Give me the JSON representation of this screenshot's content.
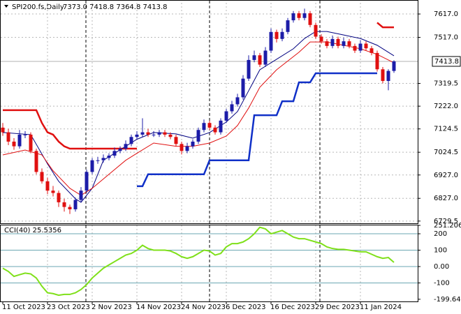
{
  "chart_data": {
    "type": "candlestick",
    "title": "SPI200.fs,Daily",
    "ohlc_text": "7373.0 7418.8 7364.8 7413.8",
    "xticks": [
      {
        "value": 0,
        "label": "11 Oct 2023"
      },
      {
        "value": 8,
        "label": "23 Oct 2023"
      },
      {
        "value": 16,
        "label": "2 Nov 2023"
      },
      {
        "value": 24,
        "label": "14 Nov 2023"
      },
      {
        "value": 32,
        "label": "24 Nov 2023"
      },
      {
        "value": 40,
        "label": "6 Dec 2023"
      },
      {
        "value": 48,
        "label": "16 Dec 2023"
      },
      {
        "value": 56,
        "label": "29 Dec 2023"
      },
      {
        "value": 64,
        "label": "11 Jan 2024"
      }
    ],
    "ylim": [
      6720,
      7665
    ],
    "yticks": [
      {
        "value": 7617,
        "label": "7617.0"
      },
      {
        "value": 7517,
        "label": "7517.0"
      },
      7319.5,
      {
        "value": 7222,
        "label": "7222.0"
      },
      7124.5,
      7024.5,
      {
        "value": 6927,
        "label": "6927.0"
      },
      {
        "value": 6827,
        "label": "6827.0"
      },
      6729.5
    ],
    "last_price": 7413.8,
    "grid": true,
    "up_color": "#1c1ca8",
    "down_color": "#e01010",
    "open": [
      7130,
      7110,
      7070,
      7050,
      7100,
      7100,
      7030,
      6940,
      6900,
      6860,
      6850,
      6810,
      6790,
      6780,
      6820,
      6860,
      6940,
      6990,
      6990,
      7000,
      7010,
      7030,
      7040,
      7060,
      7090,
      7100,
      7110,
      7100,
      7100,
      7110,
      7100,
      7090,
      7060,
      7030,
      7050,
      7070,
      7120,
      7150,
      7130,
      7110,
      7160,
      7200,
      7230,
      7260,
      7340,
      7420,
      7440,
      7400,
      7460,
      7540,
      7510,
      7540,
      7590,
      7620,
      7600,
      7620,
      7570,
      7520,
      7500,
      7480,
      7510,
      7480,
      7500,
      7480,
      7460,
      7490,
      7470,
      7450,
      7380,
      7330,
      7373.0
    ],
    "high": [
      7150,
      7125,
      7085,
      7120,
      7115,
      7110,
      7040,
      6955,
      6915,
      6880,
      6860,
      6825,
      6800,
      6830,
      6875,
      6950,
      7000,
      7005,
      7015,
      7020,
      7045,
      7050,
      7075,
      7100,
      7115,
      7170,
      7125,
      7115,
      7120,
      7120,
      7110,
      7100,
      7070,
      7065,
      7080,
      7130,
      7165,
      7160,
      7140,
      7170,
      7210,
      7245,
      7275,
      7355,
      7440,
      7460,
      7450,
      7475,
      7555,
      7550,
      7555,
      7600,
      7630,
      7630,
      7640,
      7630,
      7580,
      7530,
      7510,
      7525,
      7520,
      7515,
      7510,
      7490,
      7505,
      7500,
      7480,
      7460,
      7390,
      7380,
      7418.8
    ],
    "low": [
      7095,
      7055,
      7035,
      7040,
      7085,
      7020,
      6930,
      6890,
      6845,
      6835,
      6790,
      6770,
      6760,
      6770,
      6810,
      6850,
      6930,
      6975,
      6980,
      6990,
      7000,
      7020,
      7030,
      7050,
      7080,
      7090,
      7090,
      7090,
      7090,
      7090,
      7080,
      7050,
      7015,
      7020,
      7040,
      7060,
      7110,
      7120,
      7100,
      7100,
      7150,
      7190,
      7220,
      7250,
      7330,
      7410,
      7390,
      7390,
      7450,
      7495,
      7500,
      7530,
      7580,
      7590,
      7590,
      7560,
      7510,
      7490,
      7470,
      7470,
      7470,
      7470,
      7470,
      7450,
      7450,
      7460,
      7440,
      7370,
      7320,
      7290,
      7364.8
    ],
    "close": [
      7110,
      7070,
      7050,
      7100,
      7100,
      7030,
      6940,
      6900,
      6860,
      6850,
      6810,
      6790,
      6780,
      6820,
      6860,
      6940,
      6990,
      6990,
      7000,
      7010,
      7030,
      7040,
      7060,
      7090,
      7100,
      7110,
      7100,
      7100,
      7110,
      7100,
      7090,
      7060,
      7030,
      7050,
      7070,
      7120,
      7150,
      7130,
      7110,
      7160,
      7200,
      7230,
      7260,
      7340,
      7420,
      7440,
      7400,
      7460,
      7540,
      7510,
      7540,
      7590,
      7620,
      7600,
      7620,
      7570,
      7520,
      7500,
      7480,
      7510,
      7480,
      7500,
      7480,
      7460,
      7490,
      7470,
      7450,
      7380,
      7330,
      7373,
      7413.8
    ],
    "overlays": [
      {
        "x": [
          0,
          6,
          7,
          8,
          9,
          10,
          11,
          12,
          24,
          25,
          67,
          68,
          70
        ],
        "values": [
          7205,
          7205,
          7150,
          7110,
          7100,
          7070,
          7050,
          7040,
          7040,
          null,
          7580,
          7560,
          7560
        ],
        "color": "#e01010",
        "width": 2.5
      },
      {
        "x": [
          24,
          25,
          26,
          36,
          37,
          44,
          45,
          49,
          50,
          52,
          53,
          55,
          56,
          67
        ],
        "values": [
          6879,
          6879,
          6930,
          6930,
          6990,
          6990,
          7183,
          7183,
          7243,
          7243,
          7324,
          7324,
          7363,
          7363
        ],
        "color": "#1030c8",
        "width": 2.5
      },
      {
        "x": [
          0,
          5,
          8,
          10,
          13,
          14,
          16,
          18,
          21,
          24,
          27,
          31,
          34,
          37,
          40,
          42,
          44,
          46,
          49,
          52,
          54,
          56,
          58,
          61,
          64,
          67,
          70
        ],
        "values": [
          7109,
          7100,
          6975,
          6900,
          6825,
          6810,
          6870,
          6990,
          7035,
          7080,
          7109,
          7103,
          7085,
          7109,
          7154,
          7199,
          7288,
          7378,
          7423,
          7468,
          7512,
          7542,
          7542,
          7527,
          7512,
          7483,
          7438
        ],
        "color": "#000080",
        "width": 1
      },
      {
        "x": [
          0,
          4,
          7,
          9,
          12,
          14,
          16,
          19,
          22,
          24,
          27,
          31,
          34,
          37,
          40,
          42,
          44,
          46,
          49,
          53,
          55,
          58,
          61,
          64,
          67,
          70
        ],
        "values": [
          7013,
          7034,
          7013,
          6945,
          6870,
          6840,
          6870,
          6930,
          6990,
          7020,
          7064,
          7050,
          7050,
          7064,
          7094,
          7139,
          7214,
          7303,
          7378,
          7453,
          7497,
          7497,
          7483,
          7468,
          7444,
          7408
        ],
        "color": "#e01010",
        "width": 1
      }
    ],
    "indicator": {
      "type": "line",
      "title": "CCI(40) 25.5356",
      "ylim": [
        -213,
        251.206
      ],
      "yticks": [
        251.206,
        200,
        100,
        {
          "value": 0,
          "label": "0.00"
        },
        -100,
        -199.648
      ],
      "color": "#7fe01a",
      "values": [
        -10,
        -30,
        -60,
        -50,
        -40,
        -45,
        -70,
        -120,
        -160,
        -165,
        -175,
        -170,
        -170,
        -160,
        -140,
        -110,
        -70,
        -40,
        -10,
        10,
        30,
        50,
        70,
        80,
        100,
        130,
        110,
        100,
        100,
        100,
        95,
        80,
        60,
        50,
        60,
        80,
        100,
        95,
        70,
        80,
        120,
        140,
        140,
        150,
        170,
        200,
        240,
        230,
        200,
        210,
        220,
        200,
        180,
        170,
        170,
        160,
        150,
        140,
        120,
        110,
        105,
        105,
        100,
        95,
        90,
        90,
        75,
        60,
        50,
        55,
        25.5356
      ]
    }
  }
}
